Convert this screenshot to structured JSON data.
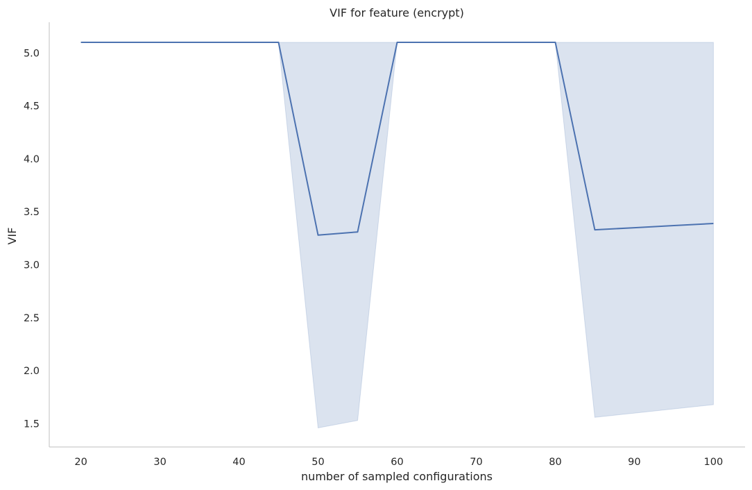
{
  "chart_data": {
    "type": "line",
    "title": "VIF for feature (encrypt)",
    "xlabel": "number of sampled configurations",
    "ylabel": "VIF",
    "xlim": [
      16,
      104
    ],
    "ylim": [
      1.28,
      5.29
    ],
    "grid": false,
    "xticks": [
      20,
      30,
      40,
      50,
      60,
      70,
      80,
      90,
      100
    ],
    "yticks": [
      1.5,
      2.0,
      2.5,
      3.0,
      3.5,
      4.0,
      4.5,
      5.0
    ],
    "colors": {
      "line": "#4c72b0",
      "band": "#4c72b0"
    },
    "series": [
      {
        "x": [
          20,
          25,
          30,
          35,
          40,
          45,
          50,
          55,
          60,
          65,
          70,
          75,
          80,
          85,
          90,
          95,
          100
        ],
        "y": [
          5.1,
          5.1,
          5.1,
          5.1,
          5.1,
          5.1,
          3.28,
          3.31,
          5.1,
          5.1,
          5.1,
          5.1,
          5.1,
          3.33,
          3.35,
          3.37,
          3.39
        ],
        "ci_lower": [
          5.1,
          5.1,
          5.1,
          5.1,
          5.1,
          5.1,
          1.46,
          1.53,
          5.1,
          5.1,
          5.1,
          5.1,
          5.1,
          1.56,
          1.6,
          1.64,
          1.68
        ],
        "ci_upper": [
          5.1,
          5.1,
          5.1,
          5.1,
          5.1,
          5.1,
          5.1,
          5.1,
          5.1,
          5.1,
          5.1,
          5.1,
          5.1,
          5.1,
          5.1,
          5.1,
          5.1
        ]
      }
    ]
  }
}
